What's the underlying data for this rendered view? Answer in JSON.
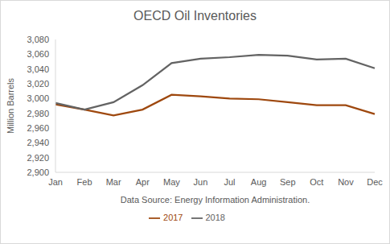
{
  "chart_data": {
    "type": "line",
    "title": "OECD Oil Inventories",
    "x_label": "Data Source: Energy Information Administration.",
    "y_label": "Million Barrels",
    "categories": [
      "Jan",
      "Feb",
      "Mar",
      "Apr",
      "May",
      "Jun",
      "Jul",
      "Aug",
      "Sep",
      "Oct",
      "Nov",
      "Dec"
    ],
    "series": [
      {
        "name": "2017",
        "color": "#9e480e",
        "values": [
          2992,
          2985,
          2977,
          2985,
          3005,
          3003,
          3000,
          2999,
          2995,
          2991,
          2991,
          2979
        ]
      },
      {
        "name": "2018",
        "color": "#636363",
        "values": [
          2994,
          2985,
          2995,
          3018,
          3048,
          3054,
          3056,
          3059,
          3058,
          3053,
          3054,
          3041
        ]
      }
    ],
    "ylim": [
      2900,
      3080
    ],
    "yticks": [
      {
        "value": 2900,
        "label": "2,900"
      },
      {
        "value": 2920,
        "label": "2,920"
      },
      {
        "value": 2940,
        "label": "2,940"
      },
      {
        "value": 2960,
        "label": "2,960"
      },
      {
        "value": 2980,
        "label": "2,980"
      },
      {
        "value": 3000,
        "label": "3,000"
      },
      {
        "value": 3020,
        "label": "3,020"
      },
      {
        "value": 3040,
        "label": "3,040"
      },
      {
        "value": 3060,
        "label": "3,060"
      },
      {
        "value": 3080,
        "label": "3,080"
      }
    ],
    "grid": false,
    "legend": "bottom"
  }
}
